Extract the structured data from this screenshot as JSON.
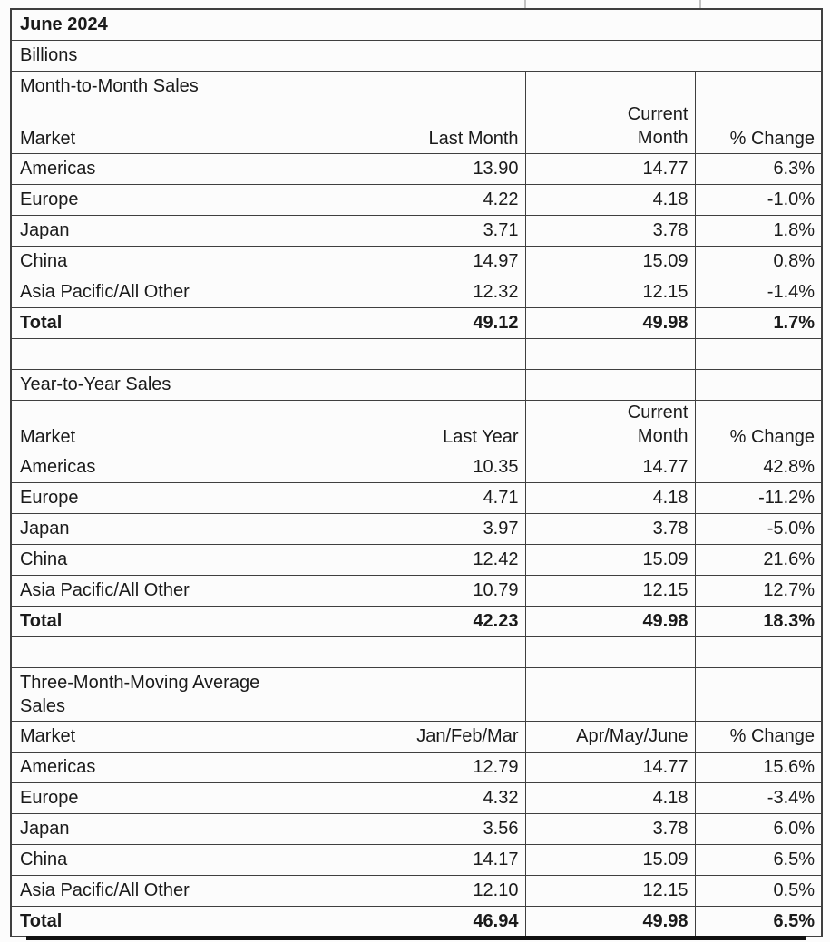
{
  "report": {
    "month": "June 2024",
    "units": "Billions"
  },
  "table": {
    "sections": [
      {
        "title": "Month-to-Month Sales",
        "headers": {
          "market": "Market",
          "prior": "Last Month",
          "current_line1": "Current",
          "current_line2": "Month",
          "change": "% Change"
        },
        "rows": [
          {
            "market": "Americas",
            "prior": "13.90",
            "current": "14.77",
            "change": "6.3%"
          },
          {
            "market": "Europe",
            "prior": "4.22",
            "current": "4.18",
            "change": "-1.0%"
          },
          {
            "market": "Japan",
            "prior": "3.71",
            "current": "3.78",
            "change": "1.8%"
          },
          {
            "market": "China",
            "prior": "14.97",
            "current": "15.09",
            "change": "0.8%"
          },
          {
            "market": "Asia Pacific/All Other",
            "prior": "12.32",
            "current": "12.15",
            "change": "-1.4%"
          }
        ],
        "total": {
          "label": "Total",
          "prior": "49.12",
          "current": "49.98",
          "change": "1.7%"
        }
      },
      {
        "title": "Year-to-Year Sales",
        "headers": {
          "market": "Market",
          "prior": "Last Year",
          "current_line1": "Current",
          "current_line2": "Month",
          "change": "% Change"
        },
        "rows": [
          {
            "market": "Americas",
            "prior": "10.35",
            "current": "14.77",
            "change": "42.8%"
          },
          {
            "market": "Europe",
            "prior": "4.71",
            "current": "4.18",
            "change": "-11.2%"
          },
          {
            "market": "Japan",
            "prior": "3.97",
            "current": "3.78",
            "change": "-5.0%"
          },
          {
            "market": "China",
            "prior": "12.42",
            "current": "15.09",
            "change": "21.6%"
          },
          {
            "market": "Asia Pacific/All Other",
            "prior": "10.79",
            "current": "12.15",
            "change": "12.7%"
          }
        ],
        "total": {
          "label": "Total",
          "prior": "42.23",
          "current": "49.98",
          "change": "18.3%"
        }
      },
      {
        "title_line1": "Three-Month-Moving Average",
        "title_line2": "Sales",
        "headers": {
          "market": "Market",
          "prior": "Jan/Feb/Mar",
          "current": "Apr/May/June",
          "change": "% Change"
        },
        "rows": [
          {
            "market": "Americas",
            "prior": "12.79",
            "current": "14.77",
            "change": "15.6%"
          },
          {
            "market": "Europe",
            "prior": "4.32",
            "current": "4.18",
            "change": "-3.4%"
          },
          {
            "market": "Japan",
            "prior": "3.56",
            "current": "3.78",
            "change": "6.0%"
          },
          {
            "market": "China",
            "prior": "14.17",
            "current": "15.09",
            "change": "6.5%"
          },
          {
            "market": "Asia Pacific/All Other",
            "prior": "12.10",
            "current": "12.15",
            "change": "0.5%"
          }
        ],
        "total": {
          "label": "Total",
          "prior": "46.94",
          "current": "49.98",
          "change": "6.5%"
        }
      }
    ]
  },
  "colors": {
    "border": "#3f3f3f",
    "text": "#1a1a1a",
    "rule": "#111111",
    "background": "#fcfcfc"
  }
}
